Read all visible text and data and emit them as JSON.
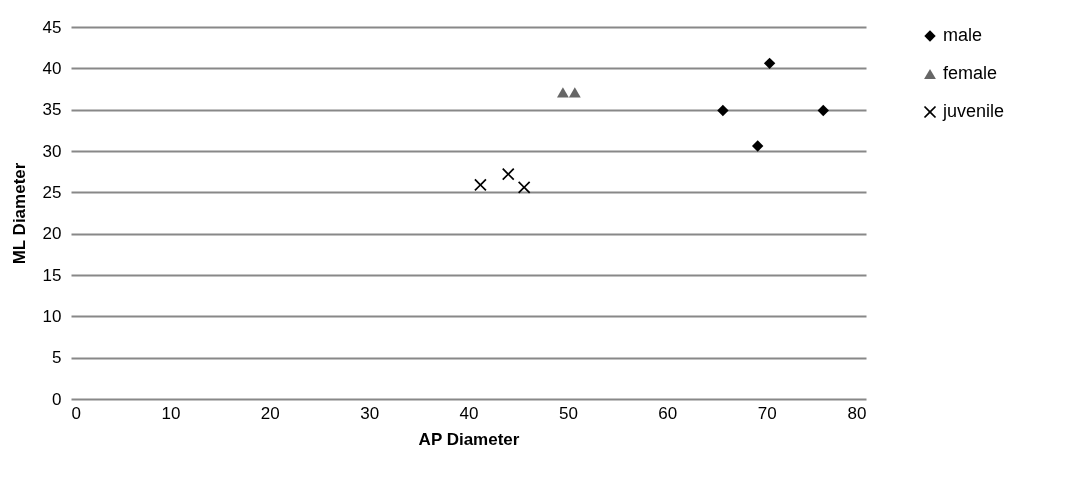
{
  "chart_data": {
    "type": "scatter",
    "xlabel": "AP Diameter",
    "ylabel": "ML Diameter",
    "xlim": [
      0,
      80
    ],
    "xticks": [
      0,
      10,
      20,
      30,
      40,
      50,
      60,
      70,
      80
    ],
    "ylim": [
      0,
      45
    ],
    "yticks": [
      0,
      5,
      10,
      15,
      20,
      25,
      30,
      35,
      40,
      45
    ],
    "grid": "y",
    "legend": "right",
    "series": [
      {
        "name": "male",
        "color": "#000000",
        "marker": "diamond",
        "x": [
          70.3,
          65.6,
          75.7,
          69.1
        ],
        "values": [
          40.6,
          34.9,
          34.9,
          30.6
        ]
      },
      {
        "name": "female",
        "color": "#666666",
        "marker": "triangle",
        "x": [
          49.5,
          50.7
        ],
        "values": [
          37.1,
          37.1
        ]
      },
      {
        "name": "juvenile",
        "color": "#000000",
        "marker": "cross",
        "x": [
          41.2,
          44.0,
          45.6
        ],
        "values": [
          25.9,
          27.2,
          25.6
        ]
      }
    ]
  }
}
